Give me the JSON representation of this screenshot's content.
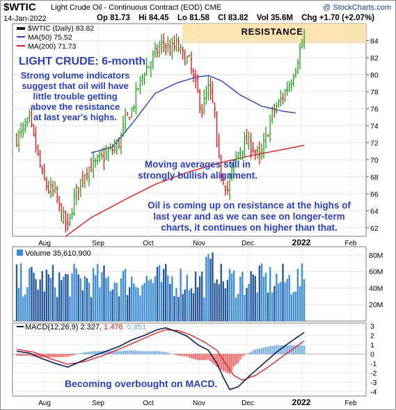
{
  "header": {
    "symbol": "$WTIC",
    "subtitle": "Light Crude Oil - Continuous Contract (EOD) CME",
    "credit": "@ StockCharts.com",
    "date": "14-Jan-2022",
    "open": "Op 81.73",
    "high": "Hi 84.45",
    "low": "Lo 81.58",
    "close": "Cl 83.82",
    "volume": "Vol 35.6M",
    "change": "Chg +1.70 (+2.07%)"
  },
  "legend": {
    "price": "$WTIC (Daily) 83.82",
    "ma50": "MA(50) 75.52",
    "ma200": "MA(200) 71.73",
    "volume": "Volume 35,610,900",
    "macd_label": "MACD(12,26,9)",
    "macd_value": "2.327",
    "macd_signal": "1.476",
    "macd_hist": "0.851"
  },
  "annotations": {
    "resistance": "RESISTANCE",
    "title": "LIGHT CRUDE: 6-month",
    "note1": [
      "Strong volume indicators",
      "suggest that oil will have",
      "little trouble getting",
      "above  the resistance",
      "at last year's highs."
    ],
    "note2": [
      "Moving averages still in",
      "strongly bullish alignment."
    ],
    "note3": [
      "Oil is coming up on resistance at the highs of",
      "last year and as we can see on longer-term",
      "charts, it continues on higher than that."
    ],
    "note4": "Becoming overbought on MACD."
  },
  "colors": {
    "bar_up": "#1a9f1a",
    "bar_down": "#e01010",
    "ma50": "#2a3fbf",
    "ma200": "#e01818",
    "volume_up": "#3f8fd8",
    "volume_down": "#2a5a9a",
    "macd_line": "#0a1a4a",
    "signal_line": "#e01818",
    "hist_pos": "#7fb0e8",
    "hist_neg": "#ff6b6b",
    "annotation": "#2a3fbf",
    "resistance_fill": "#fbe4b0"
  },
  "chart_data": {
    "type": "ohlc",
    "months": [
      "Aug",
      "Sep",
      "Oct",
      "Nov",
      "Dec",
      "2022",
      "Feb"
    ],
    "price": {
      "ylim": [
        61,
        86
      ],
      "ticks": [
        62,
        64,
        66,
        68,
        70,
        72,
        74,
        76,
        78,
        80,
        82,
        84
      ],
      "resistance_zone": [
        83.7,
        86
      ],
      "anchors": [
        [
          0,
          72.5
        ],
        [
          3,
          73.5
        ],
        [
          6,
          74.5
        ],
        [
          9,
          71.5
        ],
        [
          12,
          68.0
        ],
        [
          15,
          66.5
        ],
        [
          18,
          66.0
        ],
        [
          21,
          63.5
        ],
        [
          24,
          62.0
        ],
        [
          27,
          65.5
        ],
        [
          30,
          67.5
        ],
        [
          33,
          69.0
        ],
        [
          36,
          69.3
        ],
        [
          39,
          70.0
        ],
        [
          42,
          70.5
        ],
        [
          45,
          71.2
        ],
        [
          48,
          72.0
        ],
        [
          51,
          74.5
        ],
        [
          54,
          75.8
        ],
        [
          57,
          78.5
        ],
        [
          60,
          80.5
        ],
        [
          63,
          81.5
        ],
        [
          66,
          82.8
        ],
        [
          69,
          83.8
        ],
        [
          72,
          82.8
        ],
        [
          75,
          83.5
        ],
        [
          78,
          82.2
        ],
        [
          81,
          81.5
        ],
        [
          84,
          78.5
        ],
        [
          87,
          76.0
        ],
        [
          90,
          78.3
        ],
        [
          93,
          75.6
        ],
        [
          94,
          71.0
        ],
        [
          96,
          68.5
        ],
        [
          99,
          66.5
        ],
        [
          102,
          69.5
        ],
        [
          105,
          71.5
        ],
        [
          108,
          72.0
        ],
        [
          111,
          71.5
        ],
        [
          114,
          70.0
        ],
        [
          117,
          72.5
        ],
        [
          120,
          75.5
        ],
        [
          123,
          76.5
        ],
        [
          126,
          78.0
        ],
        [
          129,
          79.5
        ],
        [
          132,
          82.0
        ],
        [
          135,
          84.2
        ]
      ],
      "ma50_anchors": [
        [
          35,
          70.8
        ],
        [
          45,
          71.5
        ],
        [
          55,
          74.5
        ],
        [
          65,
          77.8
        ],
        [
          75,
          79.0
        ],
        [
          84,
          79.7
        ],
        [
          90,
          79.9
        ],
        [
          96,
          79.3
        ],
        [
          105,
          77.6
        ],
        [
          115,
          76.3
        ],
        [
          125,
          75.7
        ],
        [
          131,
          75.5
        ]
      ],
      "ma200_anchors": [
        [
          23,
          61.0
        ],
        [
          35,
          63.2
        ],
        [
          50,
          65.2
        ],
        [
          65,
          67.1
        ],
        [
          80,
          68.5
        ],
        [
          95,
          69.6
        ],
        [
          110,
          70.5
        ],
        [
          125,
          71.2
        ],
        [
          135,
          71.7
        ]
      ]
    },
    "volume": {
      "ylim": [
        0,
        90
      ],
      "ticks": [
        "20M",
        "40M",
        "60M",
        "80M"
      ],
      "tick_values": [
        20,
        40,
        60,
        80
      ]
    },
    "macd": {
      "ylim": [
        -4.5,
        3.3
      ],
      "ticks": [
        -4,
        -3,
        -2,
        -1,
        0,
        1,
        2,
        3
      ],
      "macd_anchors": [
        [
          0,
          0.3
        ],
        [
          6,
          0.1
        ],
        [
          12,
          -0.5
        ],
        [
          18,
          -1.0
        ],
        [
          24,
          -1.4
        ],
        [
          30,
          -0.8
        ],
        [
          36,
          -0.2
        ],
        [
          42,
          0.3
        ],
        [
          48,
          0.8
        ],
        [
          54,
          1.5
        ],
        [
          60,
          2.0
        ],
        [
          66,
          2.6
        ],
        [
          70,
          2.8
        ],
        [
          75,
          2.4
        ],
        [
          80,
          1.9
        ],
        [
          85,
          1.0
        ],
        [
          90,
          0.4
        ],
        [
          94,
          -1.0
        ],
        [
          97,
          -2.5
        ],
        [
          100,
          -3.8
        ],
        [
          104,
          -3.5
        ],
        [
          110,
          -2.2
        ],
        [
          116,
          -1.0
        ],
        [
          122,
          0.2
        ],
        [
          128,
          1.2
        ],
        [
          133,
          2.0
        ],
        [
          135,
          2.3
        ]
      ],
      "signal_anchors": [
        [
          0,
          0.5
        ],
        [
          8,
          0.2
        ],
        [
          16,
          -0.5
        ],
        [
          24,
          -1.1
        ],
        [
          32,
          -0.8
        ],
        [
          40,
          -0.2
        ],
        [
          48,
          0.5
        ],
        [
          56,
          1.3
        ],
        [
          64,
          2.1
        ],
        [
          70,
          2.6
        ],
        [
          76,
          2.5
        ],
        [
          82,
          2.0
        ],
        [
          88,
          1.3
        ],
        [
          94,
          0.4
        ],
        [
          98,
          -1.0
        ],
        [
          102,
          -2.3
        ],
        [
          106,
          -2.8
        ],
        [
          112,
          -2.3
        ],
        [
          118,
          -1.4
        ],
        [
          124,
          -0.4
        ],
        [
          130,
          0.6
        ],
        [
          135,
          1.4
        ]
      ]
    }
  }
}
